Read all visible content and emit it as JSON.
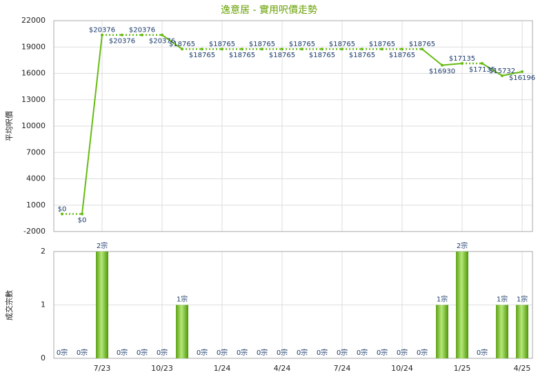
{
  "chart_data": [
    {
      "type": "line",
      "title": "逸意居 - 實用呎價走勢",
      "y_label": "平均呎價",
      "color": "#66bb11",
      "values": [
        0,
        0,
        20376,
        20376,
        20376,
        20376,
        18765,
        18765,
        18765,
        18765,
        18765,
        18765,
        18765,
        18765,
        18765,
        18765,
        18765,
        18765,
        18765,
        16930,
        17135,
        17135,
        15732,
        16196
      ],
      "value_labels": [
        "$0",
        "$0",
        "$20376",
        "$20376",
        "$20376",
        "$20376",
        "$18765",
        "$18765",
        "$18765",
        "$18765",
        "$18765",
        "$18765",
        "$18765",
        "$18765",
        "$18765",
        "$18765",
        "$18765",
        "$18765",
        "$18765",
        "$16930",
        "$17135",
        "$17135",
        "$15732",
        "$16196"
      ],
      "ylim": [
        -2000,
        22000
      ],
      "yticks": [
        -2000,
        1000,
        4000,
        7000,
        10000,
        13000,
        16000,
        19000,
        22000
      ],
      "grid": true
    },
    {
      "type": "bar",
      "y_label": "成交宗數",
      "color": "#66bb11",
      "categories": [
        null,
        null,
        "7/23",
        null,
        null,
        "10/23",
        null,
        null,
        "1/24",
        null,
        null,
        "4/24",
        null,
        null,
        "7/24",
        null,
        null,
        "10/24",
        null,
        null,
        "1/25",
        null,
        null,
        "4/25"
      ],
      "values": [
        0,
        0,
        2,
        0,
        0,
        0,
        1,
        0,
        0,
        0,
        0,
        0,
        0,
        0,
        0,
        0,
        0,
        0,
        0,
        1,
        2,
        0,
        1,
        1
      ],
      "value_labels": [
        "0宗",
        "0宗",
        "2宗",
        "0宗",
        "0宗",
        "0宗",
        "1宗",
        "0宗",
        "0宗",
        "0宗",
        "0宗",
        "0宗",
        "0宗",
        "0宗",
        "0宗",
        "0宗",
        "0宗",
        "0宗",
        "0宗",
        "1宗",
        "2宗",
        "0宗",
        "1宗",
        "1宗"
      ],
      "ylim": [
        0,
        2
      ],
      "yticks": [
        0,
        1,
        2
      ],
      "grid": true
    }
  ]
}
